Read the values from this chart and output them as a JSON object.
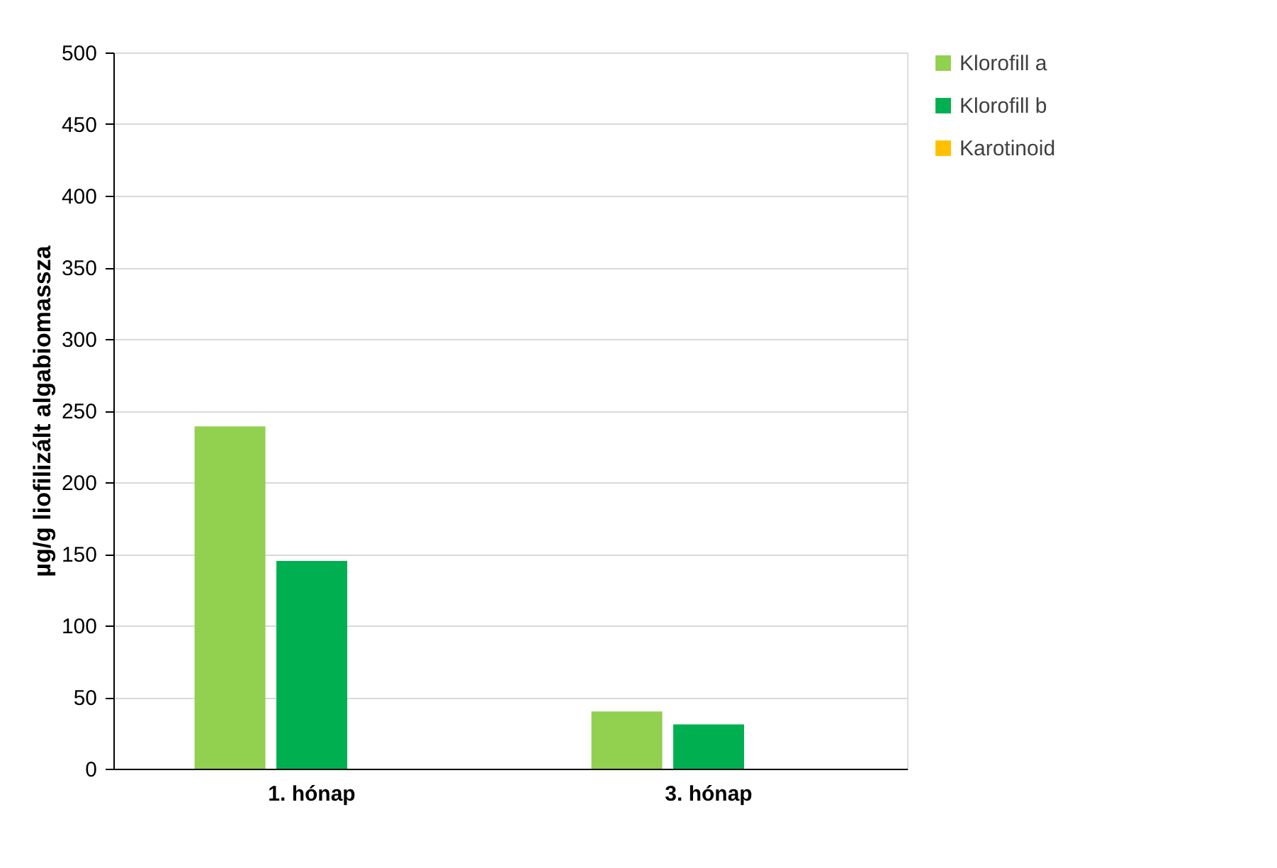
{
  "chart_data": {
    "type": "bar",
    "ylabel": "µg/g liofilizált algabiomassza",
    "categories": [
      "1. hónap",
      "3. hónap"
    ],
    "series": [
      {
        "name": "Klorofill a",
        "color": "#92d050",
        "values": [
          239,
          40
        ]
      },
      {
        "name": "Klorofill b",
        "color": "#00b050",
        "values": [
          145,
          31
        ]
      },
      {
        "name": "Karotinoid",
        "color": "#ffc000",
        "values": [
          null,
          null
        ]
      }
    ],
    "ylim": [
      0,
      500
    ],
    "yticks": [
      0,
      50,
      100,
      150,
      200,
      250,
      300,
      350,
      400,
      450,
      500
    ],
    "grid": "y",
    "legend": "right"
  }
}
